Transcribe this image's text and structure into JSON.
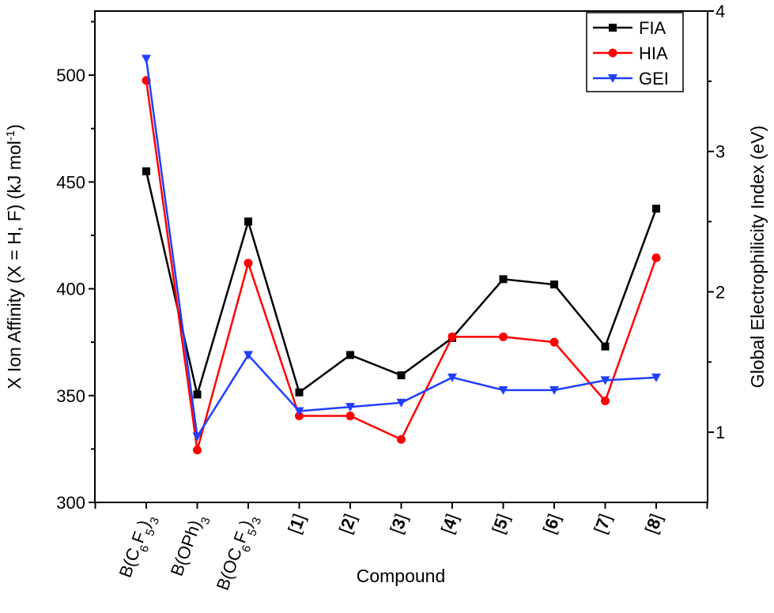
{
  "chart_data": {
    "type": "line",
    "xlabel": "Compound",
    "categories": [
      {
        "main": "B(C",
        "parts": [
          [
            "B(C",
            ""
          ],
          [
            "6",
            "sub"
          ],
          [
            "F",
            ""
          ],
          [
            "5",
            "sub"
          ],
          [
            ")",
            ""
          ],
          [
            "3",
            "sub"
          ]
        ],
        "text": "B(C6F5)3"
      },
      {
        "parts": [
          [
            "B(OPh)",
            ""
          ],
          [
            "3",
            "sub"
          ]
        ],
        "text": "B(OPh)3"
      },
      {
        "parts": [
          [
            "B(OC",
            ""
          ],
          [
            "6",
            "sub"
          ],
          [
            "F",
            ""
          ],
          [
            "5",
            "sub"
          ],
          [
            ")",
            ""
          ],
          [
            "3",
            "sub"
          ]
        ],
        "text": "B(OC6F5)3"
      },
      {
        "parts": [
          [
            "[",
            ""
          ],
          [
            "1",
            "bold"
          ],
          [
            "]",
            ""
          ]
        ],
        "text": "[1]"
      },
      {
        "parts": [
          [
            "[",
            ""
          ],
          [
            "2",
            "bold"
          ],
          [
            "]",
            ""
          ]
        ],
        "text": "[2]"
      },
      {
        "parts": [
          [
            "[",
            ""
          ],
          [
            "3",
            "bold"
          ],
          [
            "]",
            ""
          ]
        ],
        "text": "[3]"
      },
      {
        "parts": [
          [
            "[",
            ""
          ],
          [
            "4",
            "bold"
          ],
          [
            "]",
            ""
          ]
        ],
        "text": "[4]"
      },
      {
        "parts": [
          [
            "[",
            ""
          ],
          [
            "5",
            "bold"
          ],
          [
            "]",
            ""
          ]
        ],
        "text": "[5]"
      },
      {
        "parts": [
          [
            "[",
            ""
          ],
          [
            "6",
            "bold"
          ],
          [
            "]",
            ""
          ]
        ],
        "text": "[6]"
      },
      {
        "parts": [
          [
            "[",
            ""
          ],
          [
            "7",
            "bold"
          ],
          [
            "]",
            ""
          ]
        ],
        "text": "[7]"
      },
      {
        "parts": [
          [
            "[",
            ""
          ],
          [
            "8",
            "bold"
          ],
          [
            "]",
            ""
          ]
        ],
        "text": "[8]"
      }
    ],
    "y_left": {
      "label_parts": [
        [
          "X Ion Affinity (X = H, F) (kJ mol",
          ""
        ],
        [
          "-1",
          "sup"
        ],
        [
          ")",
          ""
        ]
      ],
      "label_text": "X Ion Affinity (X = H, F) (kJ mol-1)",
      "ylim": [
        300,
        530
      ],
      "ticks": [
        300,
        350,
        400,
        450,
        500
      ]
    },
    "y_right": {
      "label": "Global Electrophilicity Index (eV)",
      "ylim": [
        0.5,
        4.0
      ],
      "ticks": [
        1,
        2,
        3,
        4
      ]
    },
    "series": [
      {
        "name": "FIA",
        "axis": "left",
        "color": "#000000",
        "marker": "square",
        "values": [
          455,
          350.5,
          431.5,
          351.5,
          369,
          359.5,
          377,
          404.5,
          402,
          373,
          437.5
        ]
      },
      {
        "name": "HIA",
        "axis": "left",
        "color": "#ff0000",
        "marker": "circle",
        "values": [
          497.5,
          324.5,
          412,
          340.5,
          340.5,
          329.5,
          377.5,
          377.5,
          375,
          347.5,
          414.5
        ]
      },
      {
        "name": "GEI",
        "axis": "right",
        "color": "#1f3fff",
        "marker": "triangle-down",
        "values": [
          3.66,
          0.97,
          1.55,
          1.15,
          1.18,
          1.21,
          1.39,
          1.3,
          1.3,
          1.37,
          1.39
        ]
      }
    ],
    "legend_position": "top-right",
    "grid": false
  }
}
